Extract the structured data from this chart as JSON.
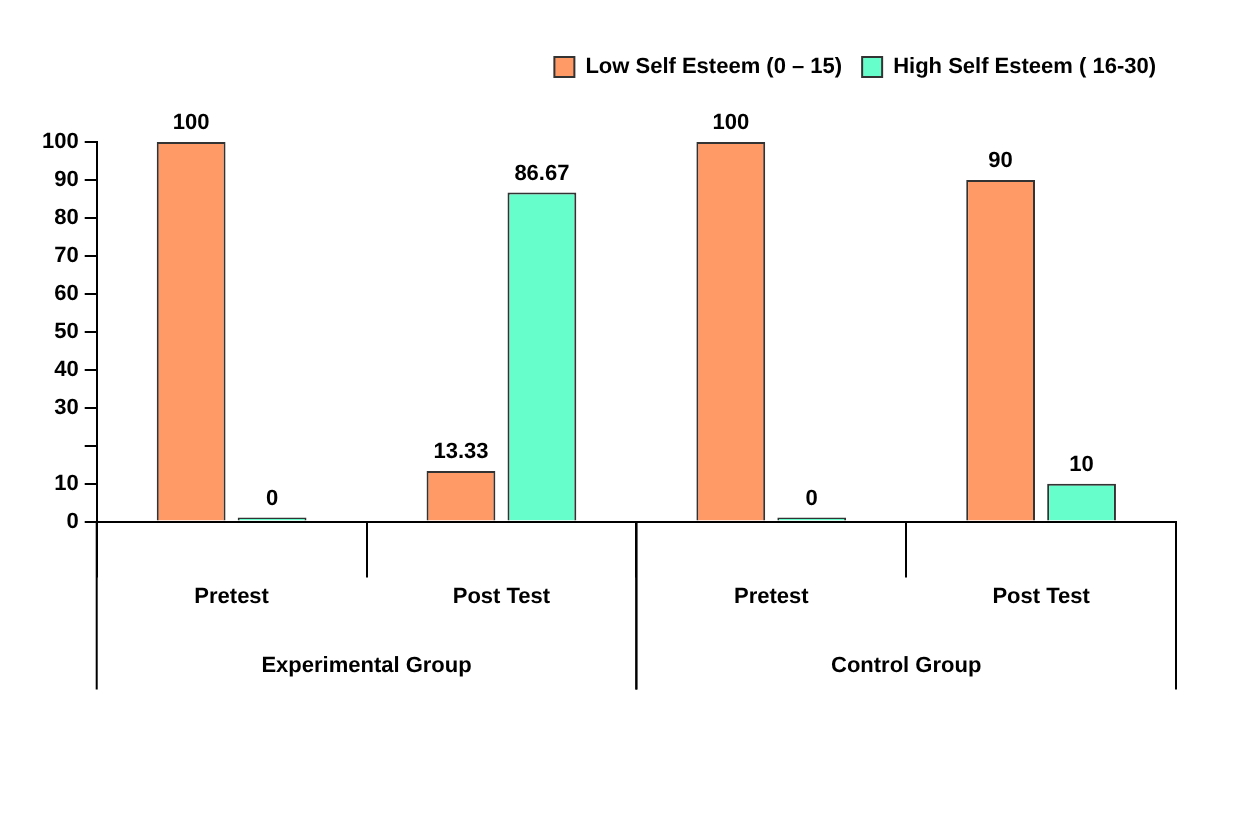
{
  "chart_data": {
    "type": "bar",
    "categories": [
      "Pretest",
      "Post Test",
      "Pretest",
      "Post Test"
    ],
    "series": [
      {
        "name": "Low Self Esteem (0 – 15)",
        "color": "#ff9966",
        "values": [
          100,
          13.33,
          100,
          90
        ]
      },
      {
        "name": "High Self Esteem ( 16-30)",
        "color": "#66ffcc",
        "values": [
          0,
          86.67,
          0,
          10
        ]
      }
    ],
    "ylim": [
      0,
      100
    ],
    "yticks": [
      0,
      10,
      {
        "value": 20,
        "label": null
      },
      30,
      40,
      50,
      60,
      70,
      80,
      90,
      100
    ],
    "grid": false,
    "legend": "top right",
    "data_labels": true,
    "annotations": [
      "Experimental Group",
      "Control Group"
    ]
  }
}
